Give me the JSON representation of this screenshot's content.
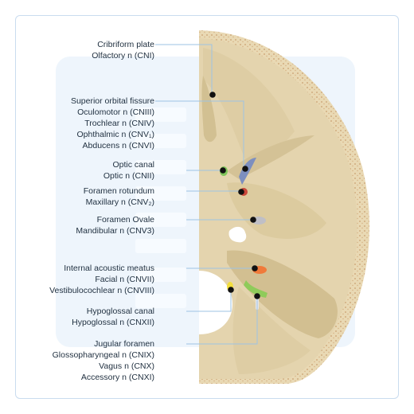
{
  "groups": [
    {
      "items": [
        "Cribriform plate",
        "Olfactory n (CNI)"
      ]
    },
    {
      "items": [
        "Superior orbital fissure",
        "Oculomotor n (CNIII)",
        "Trochlear n (CNIV)",
        "Ophthalmic n (CNV₁)",
        "Abducens n (CNVI)"
      ]
    },
    {
      "items": [
        "Optic canal",
        "Optic n (CNII)"
      ]
    },
    {
      "items": [
        "Foramen rotundum",
        "Maxillary n (CNV₂)"
      ]
    },
    {
      "items": [
        "Foramen Ovale",
        "Mandibular n (CNV3)"
      ]
    },
    {
      "items": [
        "Internal acoustic meatus",
        "Facial n (CNVII)",
        "Vestibulocochlear n (CNVIII)"
      ]
    },
    {
      "items": [
        "Hypoglossal canal",
        "Hypoglossal n (CNXII)"
      ]
    },
    {
      "items": [
        "Jugular foramen",
        "Glossopharyngeal n (CNIX)",
        "Vagus n (CNX)",
        "Accessory n (CNXI)"
      ]
    }
  ],
  "colors": {
    "bone": "#e3d3ad",
    "bone_dark": "#d2bf93",
    "bone_rim": "#d9c49a",
    "leader_line": "#9ec3e3",
    "marker": "#111111",
    "optic": "#7fc45a",
    "sof": "#7d8fbf",
    "rotundum": "#c9473a",
    "ovale": "#bfbfc6",
    "iam": "#f07a3a",
    "hypoglossal": "#f3de3c",
    "jugular": "#8fcb5a"
  }
}
